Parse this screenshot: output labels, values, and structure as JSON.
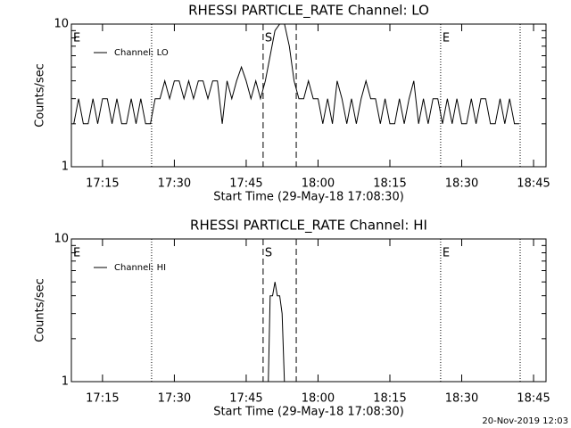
{
  "chart_data": [
    {
      "type": "line",
      "title": "RHESSI PARTICLE_RATE Channel: LO",
      "xlabel": "Start Time (29-May-18 17:08:30)",
      "ylabel": "Counts/sec",
      "x": [
        "17:09",
        "17:10",
        "17:11",
        "17:12",
        "17:13",
        "17:14",
        "17:15",
        "17:16",
        "17:17",
        "17:18",
        "17:19",
        "17:20",
        "17:21",
        "17:22",
        "17:23",
        "17:24",
        "17:25",
        "17:26",
        "17:27",
        "17:28",
        "17:29",
        "17:30",
        "17:31",
        "17:32",
        "17:33",
        "17:34",
        "17:35",
        "17:36",
        "17:37",
        "17:38",
        "17:39",
        "17:40",
        "17:41",
        "17:42",
        "17:43",
        "17:44",
        "17:45",
        "17:46",
        "17:47",
        "17:48",
        "17:49",
        "17:50",
        "17:51",
        "17:52",
        "17:53",
        "17:54",
        "17:55",
        "17:56",
        "17:57",
        "17:58",
        "17:59",
        "18:00",
        "18:01",
        "18:02",
        "18:03",
        "18:04",
        "18:05",
        "18:06",
        "18:07",
        "18:08",
        "18:09",
        "18:10",
        "18:11",
        "18:12",
        "18:13",
        "18:14",
        "18:15",
        "18:16",
        "18:17",
        "18:18",
        "18:19",
        "18:20",
        "18:21",
        "18:22",
        "18:23",
        "18:24",
        "18:25",
        "18:26",
        "18:27",
        "18:28",
        "18:29",
        "18:30",
        "18:31",
        "18:32",
        "18:33",
        "18:34",
        "18:35",
        "18:36",
        "18:37",
        "18:38",
        "18:39",
        "18:40",
        "18:41",
        "18:42"
      ],
      "series": [
        {
          "name": "Channel: LO",
          "color": "#000000",
          "values": [
            2,
            3,
            2,
            2,
            3,
            2,
            3,
            3,
            2,
            3,
            2,
            2,
            3,
            2,
            3,
            2,
            2,
            3,
            3,
            4,
            3,
            4,
            4,
            3,
            4,
            3,
            4,
            4,
            3,
            4,
            4,
            2,
            4,
            3,
            4,
            5,
            4,
            3,
            4,
            3,
            4,
            6,
            9,
            10,
            10,
            7,
            4,
            3,
            3,
            4,
            3,
            3,
            2,
            3,
            2,
            4,
            3,
            2,
            3,
            2,
            3,
            4,
            3,
            3,
            2,
            3,
            2,
            2,
            3,
            2,
            3,
            4,
            2,
            3,
            2,
            3,
            3,
            2,
            3,
            2,
            3,
            2,
            2,
            3,
            2,
            3,
            3,
            2,
            2,
            3,
            2,
            3,
            2,
            2
          ]
        }
      ],
      "xlim": [
        "17:08:30",
        "18:47:36"
      ],
      "xticks": [
        "17:15",
        "17:30",
        "17:45",
        "18:00",
        "18:15",
        "18:30",
        "18:45"
      ],
      "ylim": [
        1,
        10
      ],
      "yticks": [
        1,
        10
      ],
      "yminor": [
        2,
        3,
        4,
        5,
        6,
        7,
        8,
        9
      ],
      "log_y": true,
      "legend": "upper left",
      "markers": [
        {
          "x": "17:25:15",
          "style": "dotted"
        },
        {
          "x": "17:48:32",
          "style": "dashed"
        },
        {
          "x": "17:55:27",
          "style": "dashed"
        },
        {
          "x": "18:25:36",
          "style": "dotted"
        },
        {
          "x": "18:42:12",
          "style": "dotted"
        }
      ],
      "flags": [
        {
          "x": "17:08:30",
          "label": "E"
        },
        {
          "x": "17:48:32",
          "label": "S"
        },
        {
          "x": "18:25:36",
          "label": "E"
        }
      ]
    },
    {
      "type": "line",
      "title": "RHESSI PARTICLE_RATE Channel: HI",
      "xlabel": "Start Time (29-May-18 17:08:30)",
      "ylabel": "Counts/sec",
      "x": [
        "17:49:30",
        "17:50:00",
        "17:50:30",
        "17:51:00",
        "17:51:30",
        "17:52:00",
        "17:52:30",
        "17:53:10"
      ],
      "series": [
        {
          "name": "Channel: HI",
          "color": "#000000",
          "values": [
            0,
            4,
            4,
            5,
            4,
            4,
            3,
            0
          ]
        }
      ],
      "xlim": [
        "17:08:30",
        "18:47:36"
      ],
      "xticks": [
        "17:15",
        "17:30",
        "17:45",
        "18:00",
        "18:15",
        "18:30",
        "18:45"
      ],
      "ylim": [
        1,
        10
      ],
      "yticks": [
        1,
        10
      ],
      "yminor": [
        2,
        3,
        4,
        5,
        6,
        7,
        8,
        9
      ],
      "log_y": true,
      "legend": "upper left",
      "markers": [
        {
          "x": "17:25:15",
          "style": "dotted"
        },
        {
          "x": "17:48:32",
          "style": "dashed"
        },
        {
          "x": "17:55:27",
          "style": "dashed"
        },
        {
          "x": "18:25:36",
          "style": "dotted"
        },
        {
          "x": "18:42:12",
          "style": "dotted"
        }
      ],
      "flags": [
        {
          "x": "17:08:30",
          "label": "E"
        },
        {
          "x": "17:48:32",
          "label": "S"
        },
        {
          "x": "18:25:36",
          "label": "E"
        }
      ]
    }
  ],
  "footer": "20-Nov-2019 12:03"
}
